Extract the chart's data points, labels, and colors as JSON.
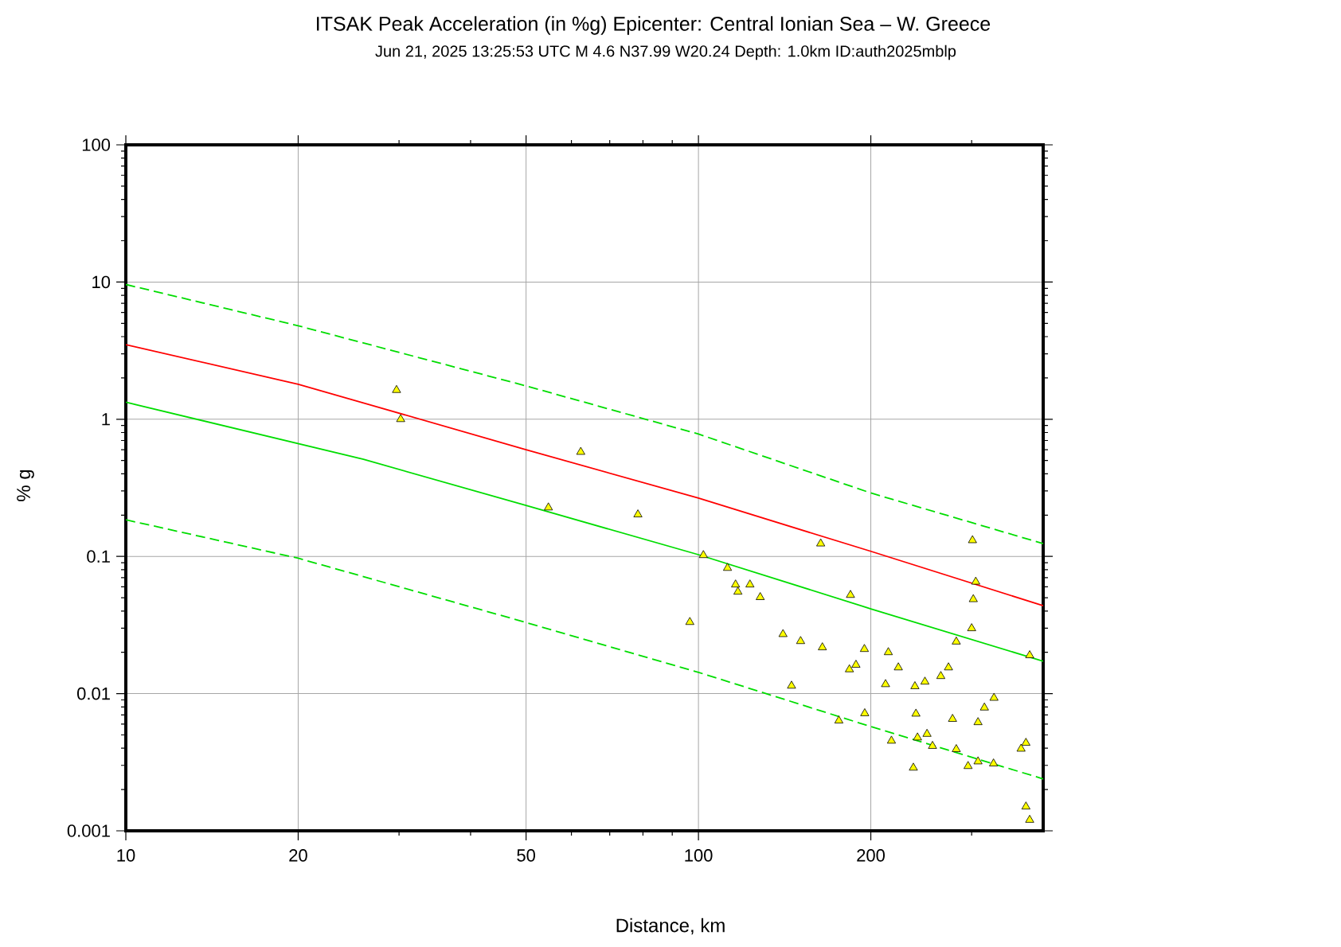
{
  "chart_data": {
    "type": "line",
    "title": "ITSAK Peak Acceleration (in %g) Epicenter: Central Ionian Sea – W. Greece",
    "subtitle": "Jun 21, 2025 13:25:53 UTC   M 4.6   N37.99 W20.24   Depth: 1.0km   ID:auth2025mblp",
    "xlabel": "Distance, km",
    "ylabel": "% g",
    "log": "xy",
    "grid": true,
    "xlim": [
      10,
      400
    ],
    "ylim": [
      0.001,
      100
    ],
    "xticks": [
      10,
      20,
      50,
      100,
      200
    ],
    "yticks": [
      0.001,
      0.01,
      0.1,
      1,
      10,
      100
    ],
    "series": [
      {
        "color": "#00dd00",
        "line_style": "dashed",
        "x": [
          10,
          20,
          50,
          100,
          200,
          400
        ],
        "values": [
          9.6,
          4.8,
          1.75,
          0.78,
          0.29,
          0.124
        ]
      },
      {
        "color": "#ff0000",
        "line_style": "solid",
        "x": [
          10,
          20,
          50,
          100,
          200,
          400
        ],
        "values": [
          3.5,
          1.8,
          0.6,
          0.266,
          0.109,
          0.0437
        ]
      },
      {
        "color": "#00dd00",
        "line_style": "solid",
        "x": [
          10,
          26,
          50,
          100,
          200,
          400
        ],
        "values": [
          1.33,
          0.51,
          0.235,
          0.103,
          0.0415,
          0.0172
        ]
      },
      {
        "color": "#00dd00",
        "line_style": "dashed",
        "x": [
          10,
          20,
          50,
          100,
          200,
          400
        ],
        "values": [
          0.185,
          0.097,
          0.033,
          0.0143,
          0.00575,
          0.00239
        ]
      },
      {
        "type": "scatter",
        "color": "#ffff00",
        "marker": "triangle",
        "x": [
          29.7,
          30.2,
          62.3,
          54.7,
          78.4,
          163.5,
          301,
          102,
          112.4,
          305,
          116.1,
          123,
          117.2,
          302,
          128.2,
          184.3,
          96.6,
          300,
          140.5,
          282,
          150.8,
          164.6,
          194.9,
          214.6,
          378.9,
          188.4,
          183.5,
          223.4,
          273.3,
          265,
          212.2,
          238.8,
          248.6,
          145.4,
          328.2,
          315.8,
          195.2,
          239.8,
          277.8,
          175.9,
          307.8,
          250.7,
          373.2,
          366,
          217.3,
          241.3,
          256.3,
          282,
          307.8,
          327.6,
          295.7,
          237.3,
          373.2,
          378.9
        ],
        "values": [
          1.63,
          1.0,
          0.577,
          0.227,
          0.202,
          0.124,
          0.131,
          0.102,
          0.0823,
          0.0653,
          0.0623,
          0.0623,
          0.0552,
          0.0487,
          0.0504,
          0.0523,
          0.0332,
          0.0299,
          0.0271,
          0.0239,
          0.0241,
          0.0217,
          0.0211,
          0.02,
          0.019,
          0.0162,
          0.015,
          0.0155,
          0.0155,
          0.0134,
          0.0117,
          0.0113,
          0.0122,
          0.0114,
          0.0093,
          0.0079,
          0.00718,
          0.00713,
          0.00653,
          0.00635,
          0.00618,
          0.00508,
          0.00437,
          0.00396,
          0.00453,
          0.00478,
          0.00415,
          0.00393,
          0.0032,
          0.00309,
          0.00296,
          0.00288,
          0.0015,
          0.0012
        ]
      }
    ]
  }
}
